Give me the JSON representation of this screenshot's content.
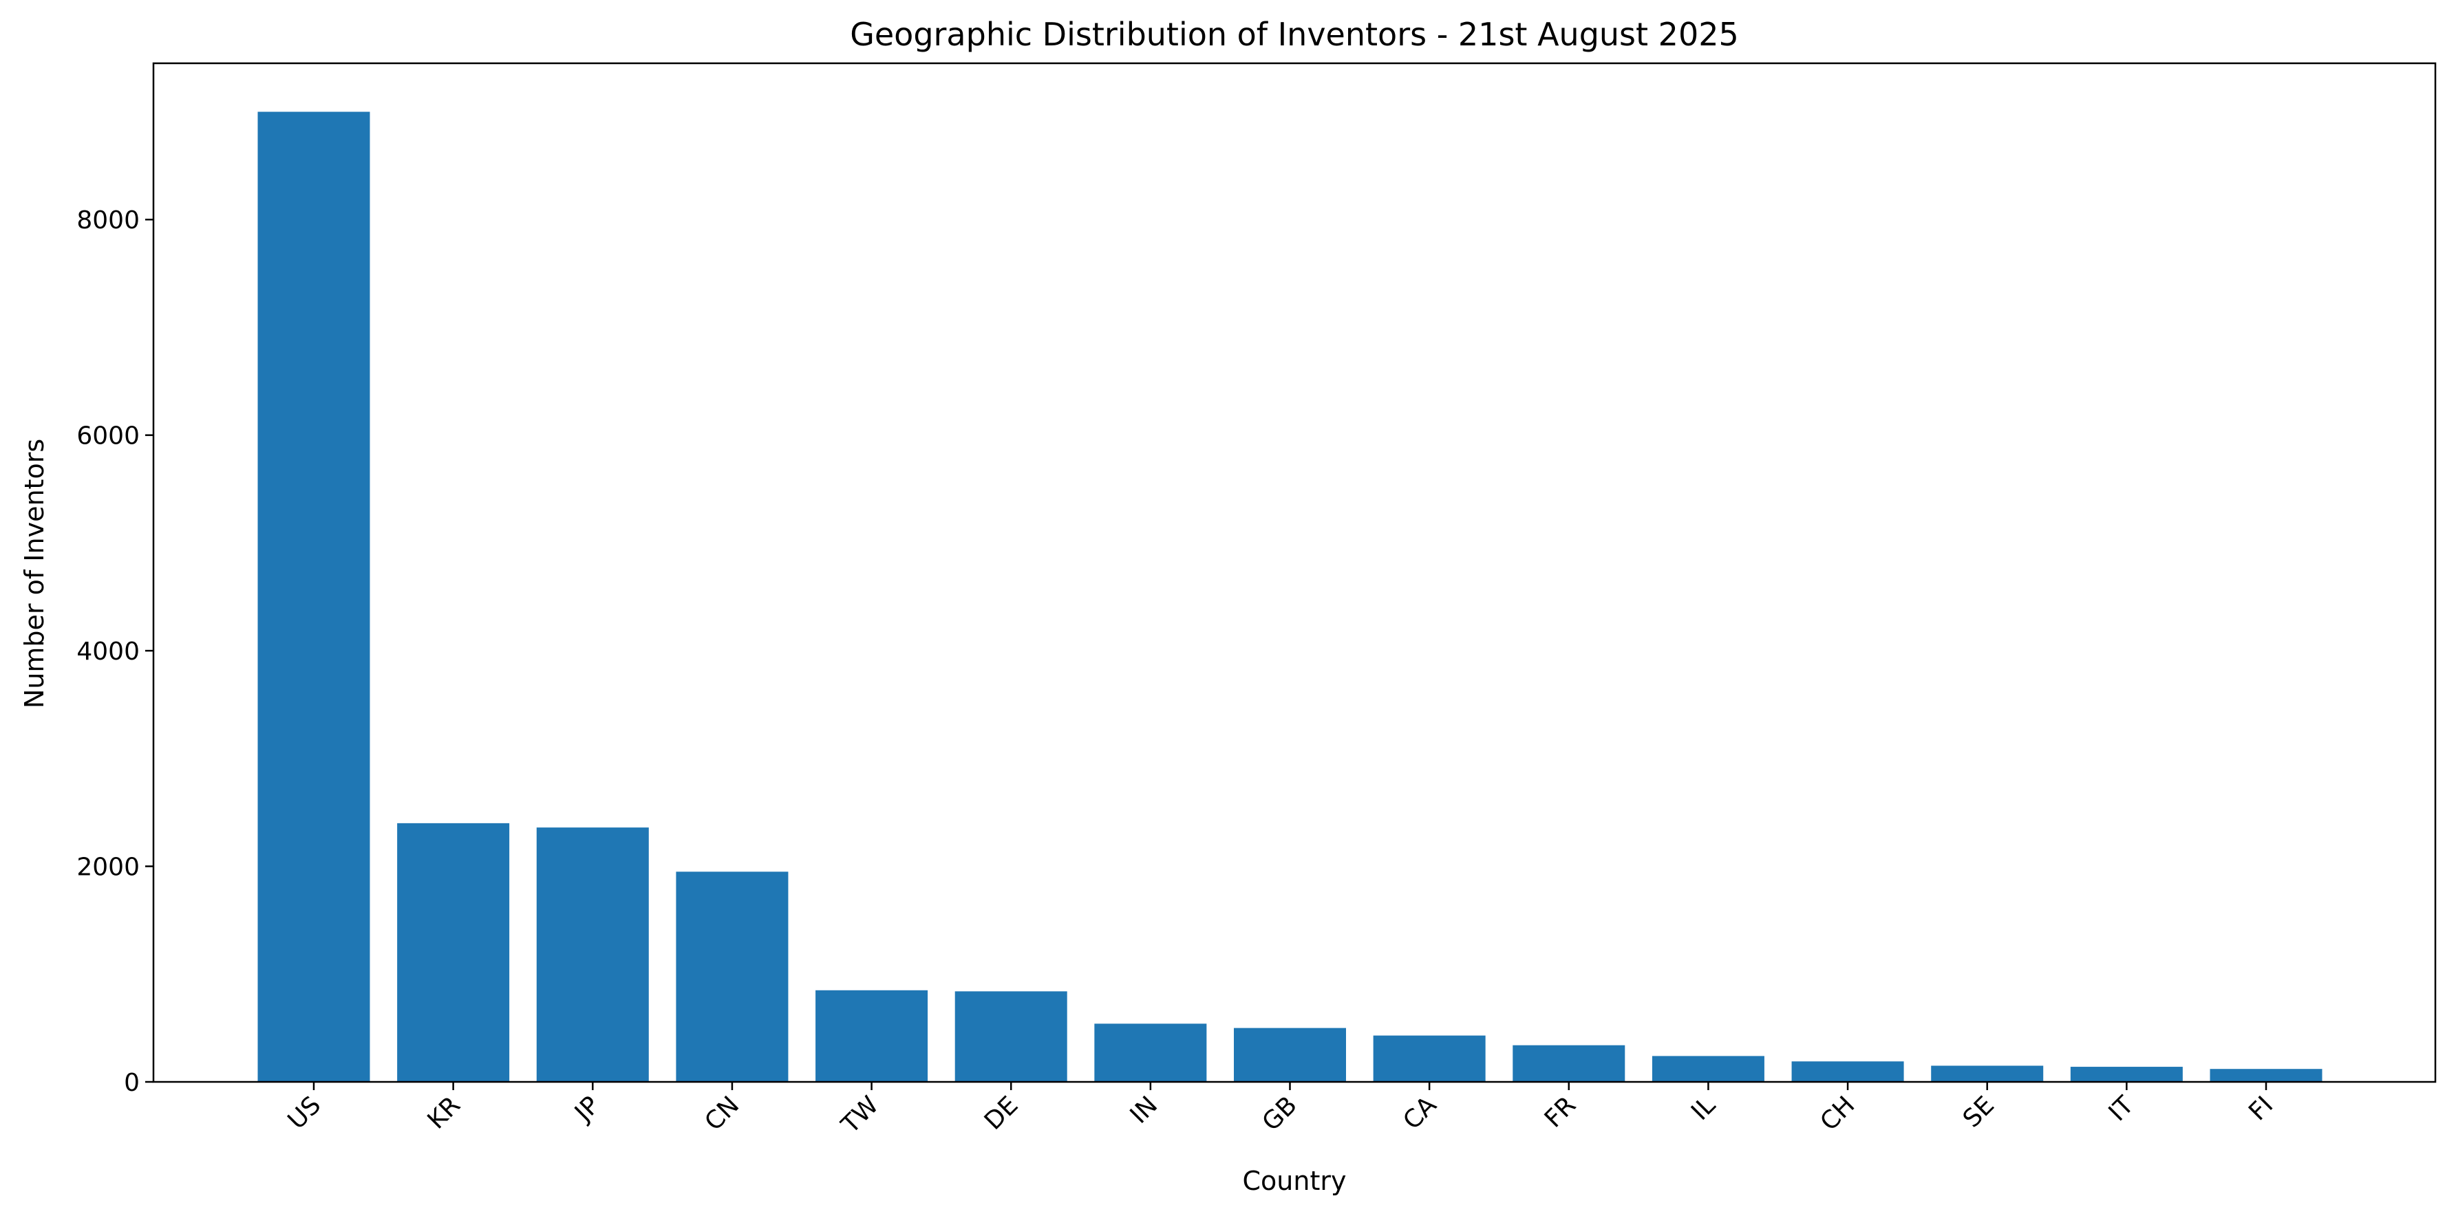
{
  "chart_data": {
    "type": "bar",
    "title": "Geographic Distribution of Inventors - 21st August 2025",
    "xlabel": "Country",
    "ylabel": "Number of Inventors",
    "categories": [
      "US",
      "KR",
      "JP",
      "CN",
      "TW",
      "DE",
      "IN",
      "GB",
      "CA",
      "FR",
      "IL",
      "CH",
      "SE",
      "IT",
      "FI"
    ],
    "values": [
      9000,
      2400,
      2360,
      1950,
      850,
      840,
      540,
      500,
      430,
      340,
      240,
      190,
      150,
      140,
      120
    ],
    "ylim": [
      0,
      9450
    ],
    "yticks": [
      0,
      2000,
      4000,
      6000,
      8000
    ],
    "ytick_labels": [
      "0",
      "2000",
      "4000",
      "6000",
      "8000"
    ],
    "bar_color": "#1f77b4",
    "grid": false,
    "legend": "none"
  }
}
